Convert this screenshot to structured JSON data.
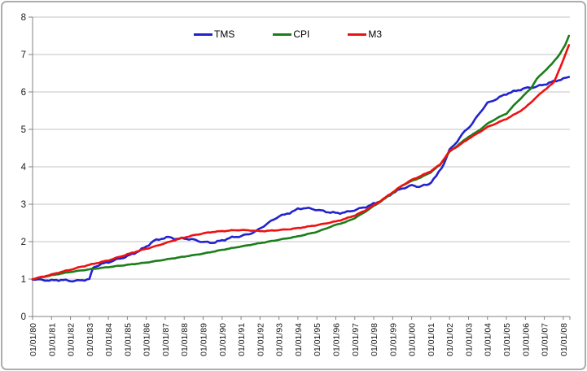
{
  "chart_data": {
    "type": "line",
    "title": "",
    "xlabel": "",
    "ylabel": "",
    "ylim": [
      0,
      8
    ],
    "y_ticks": [
      0,
      1,
      2,
      3,
      4,
      5,
      6,
      7,
      8
    ],
    "xlim_years": [
      1980,
      2008.35
    ],
    "x_tick_years": [
      1980,
      1981,
      1982,
      1983,
      1984,
      1985,
      1986,
      1987,
      1988,
      1989,
      1990,
      1991,
      1992,
      1993,
      1994,
      1995,
      1996,
      1997,
      1998,
      1999,
      2000,
      2001,
      2002,
      2003,
      2004,
      2005,
      2006,
      2007,
      2008
    ],
    "x_tick_labels": [
      "01/01/80",
      "01/01/81",
      "01/01/82",
      "01/01/83",
      "01/01/84",
      "01/01/85",
      "01/01/86",
      "01/01/87",
      "01/01/88",
      "01/01/89",
      "01/01/90",
      "01/01/91",
      "01/01/92",
      "01/01/93",
      "01/01/94",
      "01/01/95",
      "01/01/96",
      "01/01/97",
      "01/01/98",
      "01/01/99",
      "01/01/00",
      "01/01/01",
      "01/01/02",
      "01/01/03",
      "01/01/04",
      "01/01/05",
      "01/01/06",
      "01/01/07",
      "01/01/08"
    ],
    "grid": "horizontal",
    "legend_position": "top-center",
    "series": [
      {
        "name": "TMS",
        "color": "#2222CF",
        "noise": 0.016,
        "points": [
          [
            1980.0,
            1.0
          ],
          [
            1980.4,
            0.98
          ],
          [
            1981.0,
            0.96
          ],
          [
            1981.5,
            0.98
          ],
          [
            1982.0,
            0.95
          ],
          [
            1982.5,
            0.96
          ],
          [
            1983.0,
            1.0
          ],
          [
            1983.2,
            1.3
          ],
          [
            1983.5,
            1.38
          ],
          [
            1984.0,
            1.45
          ],
          [
            1984.5,
            1.53
          ],
          [
            1985.0,
            1.61
          ],
          [
            1985.5,
            1.72
          ],
          [
            1986.0,
            1.87
          ],
          [
            1986.4,
            2.02
          ],
          [
            1986.8,
            2.08
          ],
          [
            1987.2,
            2.12
          ],
          [
            1987.6,
            2.07
          ],
          [
            1988.0,
            2.09
          ],
          [
            1988.5,
            2.05
          ],
          [
            1989.0,
            1.99
          ],
          [
            1989.5,
            1.97
          ],
          [
            1990.0,
            2.03
          ],
          [
            1990.4,
            2.1
          ],
          [
            1991.0,
            2.15
          ],
          [
            1991.4,
            2.2
          ],
          [
            1991.8,
            2.28
          ],
          [
            1992.2,
            2.42
          ],
          [
            1992.6,
            2.55
          ],
          [
            1993.0,
            2.68
          ],
          [
            1993.3,
            2.72
          ],
          [
            1993.7,
            2.8
          ],
          [
            1994.0,
            2.87
          ],
          [
            1994.3,
            2.9
          ],
          [
            1994.7,
            2.88
          ],
          [
            1995.1,
            2.84
          ],
          [
            1995.6,
            2.79
          ],
          [
            1996.1,
            2.76
          ],
          [
            1996.6,
            2.79
          ],
          [
            1997.1,
            2.86
          ],
          [
            1997.6,
            2.93
          ],
          [
            1998.1,
            3.03
          ],
          [
            1998.6,
            3.15
          ],
          [
            1999.0,
            3.3
          ],
          [
            1999.5,
            3.42
          ],
          [
            2000.0,
            3.5
          ],
          [
            2000.4,
            3.47
          ],
          [
            2000.9,
            3.53
          ],
          [
            2001.3,
            3.75
          ],
          [
            2001.7,
            4.08
          ],
          [
            2002.0,
            4.45
          ],
          [
            2002.4,
            4.68
          ],
          [
            2002.8,
            4.95
          ],
          [
            2003.2,
            5.15
          ],
          [
            2003.6,
            5.45
          ],
          [
            2004.0,
            5.7
          ],
          [
            2004.5,
            5.82
          ],
          [
            2005.0,
            5.95
          ],
          [
            2005.5,
            6.03
          ],
          [
            2006.0,
            6.1
          ],
          [
            2006.5,
            6.13
          ],
          [
            2007.0,
            6.2
          ],
          [
            2007.5,
            6.28
          ],
          [
            2008.0,
            6.35
          ],
          [
            2008.3,
            6.4
          ]
        ]
      },
      {
        "name": "CPI",
        "color": "#1B7E1B",
        "noise": 0.005,
        "points": [
          [
            1980.0,
            1.0
          ],
          [
            1981.0,
            1.1
          ],
          [
            1982.0,
            1.19
          ],
          [
            1983.0,
            1.26
          ],
          [
            1984.0,
            1.32
          ],
          [
            1985.0,
            1.38
          ],
          [
            1986.0,
            1.44
          ],
          [
            1987.0,
            1.52
          ],
          [
            1988.0,
            1.6
          ],
          [
            1989.0,
            1.68
          ],
          [
            1990.0,
            1.78
          ],
          [
            1991.0,
            1.87
          ],
          [
            1992.0,
            1.96
          ],
          [
            1993.0,
            2.05
          ],
          [
            1994.0,
            2.14
          ],
          [
            1995.0,
            2.26
          ],
          [
            1996.0,
            2.45
          ],
          [
            1996.5,
            2.52
          ],
          [
            1997.0,
            2.63
          ],
          [
            1997.5,
            2.78
          ],
          [
            1998.0,
            2.95
          ],
          [
            1998.5,
            3.12
          ],
          [
            1999.0,
            3.3
          ],
          [
            1999.5,
            3.5
          ],
          [
            2000.0,
            3.62
          ],
          [
            2000.5,
            3.72
          ],
          [
            2001.0,
            3.85
          ],
          [
            2001.5,
            4.05
          ],
          [
            2002.0,
            4.4
          ],
          [
            2002.5,
            4.6
          ],
          [
            2003.0,
            4.8
          ],
          [
            2003.5,
            4.95
          ],
          [
            2004.0,
            5.15
          ],
          [
            2004.5,
            5.3
          ],
          [
            2005.0,
            5.42
          ],
          [
            2005.5,
            5.7
          ],
          [
            2006.0,
            5.95
          ],
          [
            2006.3,
            6.1
          ],
          [
            2006.6,
            6.35
          ],
          [
            2007.0,
            6.55
          ],
          [
            2007.4,
            6.75
          ],
          [
            2007.8,
            7.0
          ],
          [
            2008.1,
            7.25
          ],
          [
            2008.3,
            7.5
          ]
        ]
      },
      {
        "name": "M3",
        "color": "#EE1111",
        "noise": 0.007,
        "points": [
          [
            1980.0,
            1.0
          ],
          [
            1980.5,
            1.06
          ],
          [
            1981.0,
            1.12
          ],
          [
            1981.5,
            1.19
          ],
          [
            1982.0,
            1.25
          ],
          [
            1982.5,
            1.32
          ],
          [
            1983.0,
            1.38
          ],
          [
            1983.5,
            1.44
          ],
          [
            1984.0,
            1.5
          ],
          [
            1984.5,
            1.58
          ],
          [
            1985.0,
            1.66
          ],
          [
            1985.5,
            1.74
          ],
          [
            1986.0,
            1.81
          ],
          [
            1986.5,
            1.88
          ],
          [
            1987.0,
            1.96
          ],
          [
            1987.5,
            2.04
          ],
          [
            1988.0,
            2.11
          ],
          [
            1988.5,
            2.17
          ],
          [
            1989.0,
            2.22
          ],
          [
            1989.5,
            2.26
          ],
          [
            1990.0,
            2.28
          ],
          [
            1990.5,
            2.3
          ],
          [
            1991.0,
            2.31
          ],
          [
            1991.5,
            2.3
          ],
          [
            1992.0,
            2.28
          ],
          [
            1992.5,
            2.29
          ],
          [
            1993.0,
            2.31
          ],
          [
            1993.5,
            2.33
          ],
          [
            1994.0,
            2.36
          ],
          [
            1994.5,
            2.4
          ],
          [
            1995.0,
            2.44
          ],
          [
            1995.5,
            2.49
          ],
          [
            1996.0,
            2.54
          ],
          [
            1996.5,
            2.61
          ],
          [
            1997.0,
            2.7
          ],
          [
            1997.5,
            2.82
          ],
          [
            1998.0,
            2.97
          ],
          [
            1998.5,
            3.14
          ],
          [
            1999.0,
            3.32
          ],
          [
            1999.5,
            3.5
          ],
          [
            2000.0,
            3.65
          ],
          [
            2000.5,
            3.76
          ],
          [
            2001.0,
            3.88
          ],
          [
            2001.5,
            4.06
          ],
          [
            2002.0,
            4.42
          ],
          [
            2002.5,
            4.57
          ],
          [
            2003.0,
            4.75
          ],
          [
            2003.5,
            4.9
          ],
          [
            2004.0,
            5.06
          ],
          [
            2004.5,
            5.17
          ],
          [
            2005.0,
            5.28
          ],
          [
            2005.5,
            5.42
          ],
          [
            2006.0,
            5.58
          ],
          [
            2006.5,
            5.82
          ],
          [
            2007.0,
            6.05
          ],
          [
            2007.5,
            6.25
          ],
          [
            2008.0,
            6.85
          ],
          [
            2008.3,
            7.25
          ]
        ]
      }
    ]
  },
  "colors": {
    "background": "#FFFFFF",
    "frame_border": "#ADADAD",
    "gridline": "#C3C3C3",
    "axis": "#808080",
    "tick_label": "#1A1A1A"
  }
}
